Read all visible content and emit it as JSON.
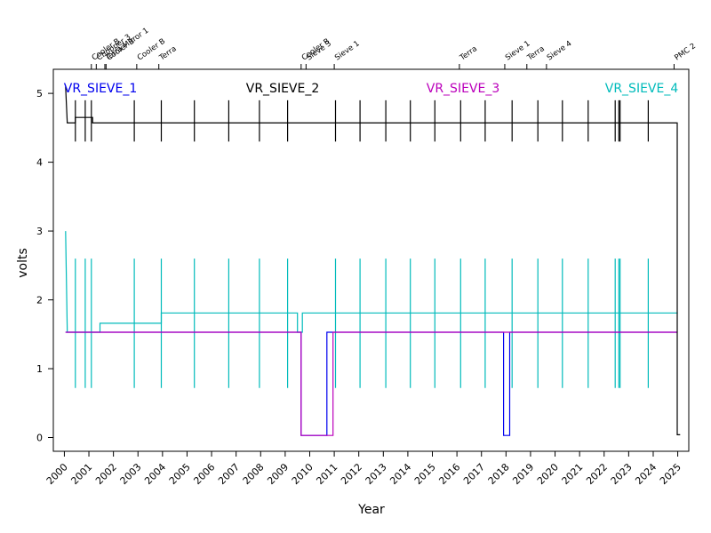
{
  "chart_data": {
    "type": "line",
    "title": "",
    "xlabel": "Year",
    "ylabel": "volts",
    "xlim": [
      1999.55,
      2025.45
    ],
    "ylim": [
      -0.2,
      5.35
    ],
    "x_ticks": [
      2000,
      2001,
      2002,
      2003,
      2004,
      2005,
      2006,
      2007,
      2008,
      2009,
      2010,
      2011,
      2012,
      2013,
      2014,
      2015,
      2016,
      2017,
      2018,
      2019,
      2020,
      2021,
      2022,
      2023,
      2024,
      2025
    ],
    "x_tick_labels": [
      "2000",
      "2001",
      "2002",
      "2003",
      "2004",
      "2005",
      "2006",
      "2007",
      "2008",
      "2009",
      "2010",
      "2011",
      "2012",
      "2013",
      "2014",
      "2015",
      "2016",
      "2017",
      "2018",
      "2019",
      "2020",
      "2021",
      "2022",
      "2023",
      "2024",
      "2025"
    ],
    "y_ticks": [
      0,
      1,
      2,
      3,
      4,
      5
    ],
    "y_tick_labels": [
      "0",
      "1",
      "2",
      "3",
      "4",
      "5"
    ],
    "events": [
      {
        "x": 2001.1,
        "label": "Cooler B"
      },
      {
        "x": 2001.3,
        "label": "Chopper 3"
      },
      {
        "x": 2001.65,
        "label": "Terra Mirror 1"
      },
      {
        "x": 2001.7,
        "label": "Cooler B"
      },
      {
        "x": 2002.95,
        "label": "Cooler B"
      },
      {
        "x": 2003.85,
        "label": "Terra"
      },
      {
        "x": 2009.65,
        "label": "Cooler B"
      },
      {
        "x": 2009.85,
        "label": "Sieve 3"
      },
      {
        "x": 2011.0,
        "label": "Sieve 1"
      },
      {
        "x": 2016.1,
        "label": "Terra"
      },
      {
        "x": 2017.95,
        "label": "Sieve 1"
      },
      {
        "x": 2018.85,
        "label": "Terra"
      },
      {
        "x": 2019.65,
        "label": "Sieve 4"
      },
      {
        "x": 2024.85,
        "label": "PMC 2"
      }
    ],
    "series": [
      {
        "name": "VR_SIEVE_1",
        "color": "#0000ee",
        "points": [
          [
            2000.05,
            1.53
          ],
          [
            2024.98,
            1.53
          ]
        ],
        "dips": [
          [
            2009.65,
            2010.7,
            0.03
          ],
          [
            2017.9,
            2018.15,
            0.03
          ]
        ]
      },
      {
        "name": "VR_SIEVE_2",
        "color": "#000000",
        "base": [
          [
            2000.05,
            5.1
          ],
          [
            2000.12,
            4.57
          ],
          [
            2000.45,
            4.57
          ],
          [
            2000.45,
            4.65
          ],
          [
            2001.15,
            4.65
          ],
          [
            2001.15,
            4.57
          ],
          [
            2024.98,
            4.57
          ],
          [
            2024.98,
            0.04
          ],
          [
            2025.1,
            0.04
          ]
        ],
        "spikes": [
          2000.45,
          2000.85,
          2001.1,
          2002.85,
          2003.95,
          2005.3,
          2006.7,
          2007.95,
          2009.1,
          2011.05,
          2012.05,
          2013.1,
          2014.1,
          2015.1,
          2016.15,
          2017.15,
          2018.25,
          2019.3,
          2020.3,
          2021.35,
          2022.45,
          2022.6,
          2022.65,
          2023.8
        ],
        "spike_range": [
          4.3,
          4.9
        ]
      },
      {
        "name": "VR_SIEVE_3",
        "color": "#bb00bb",
        "points": [
          [
            2000.05,
            1.53
          ],
          [
            2024.98,
            1.53
          ]
        ],
        "dips": [
          [
            2009.65,
            2010.95,
            0.03
          ]
        ]
      },
      {
        "name": "VR_SIEVE_4",
        "color": "#00bbbb",
        "base": [
          [
            2000.05,
            3.0
          ],
          [
            2000.12,
            1.53
          ],
          [
            2001.45,
            1.53
          ],
          [
            2001.45,
            1.66
          ],
          [
            2003.95,
            1.66
          ],
          [
            2003.95,
            1.81
          ],
          [
            2009.5,
            1.81
          ],
          [
            2009.5,
            1.53
          ],
          [
            2009.7,
            1.53
          ],
          [
            2009.7,
            1.81
          ],
          [
            2025.0,
            1.81
          ]
        ],
        "spikes": [
          2000.45,
          2000.85,
          2001.1,
          2002.85,
          2003.95,
          2005.3,
          2006.7,
          2007.95,
          2009.1,
          2011.05,
          2012.05,
          2013.1,
          2014.1,
          2015.1,
          2016.15,
          2017.15,
          2018.25,
          2019.3,
          2020.3,
          2021.35,
          2022.45,
          2022.6,
          2022.65,
          2023.8
        ],
        "spike_range": [
          0.72,
          2.6
        ]
      }
    ]
  }
}
